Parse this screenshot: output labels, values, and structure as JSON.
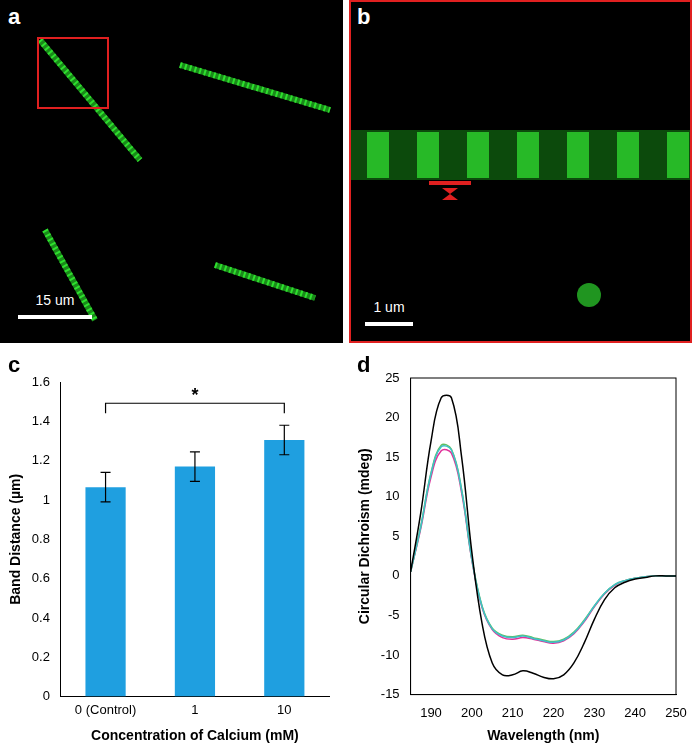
{
  "images": [
    {
      "panel_label": "a",
      "scale_bar": "15 um"
    },
    {
      "panel_label": "b",
      "scale_bar": "1 um"
    }
  ],
  "chart_data": [
    {
      "panel_label": "c",
      "type": "bar",
      "x_label": "Concentration of Calcium (mM)",
      "y_label": "Band Distance (µm)",
      "categories": [
        "0 (Control)",
        "1",
        "10"
      ],
      "values": [
        1.065,
        1.17,
        1.305
      ],
      "errors": [
        0.075,
        0.075,
        0.075
      ],
      "color": "#1f9fe0",
      "ylim": [
        0,
        1.6
      ],
      "yticks": [
        0,
        0.2,
        0.4,
        0.6,
        0.8,
        1,
        1.2,
        1.4,
        1.6
      ],
      "grid": false,
      "annotations": [
        {
          "text": "*",
          "from": "0 (Control)",
          "to": "10"
        }
      ]
    },
    {
      "panel_label": "d",
      "type": "line",
      "x_label": "Wavelength (nm)",
      "y_label": "Circular Dichroism (mdeg)",
      "x": [
        185,
        187.5,
        190,
        192.5,
        195,
        197.5,
        200,
        202.5,
        205,
        207.5,
        210,
        212.5,
        215,
        217.5,
        220,
        222.5,
        225,
        227.5,
        230,
        232.5,
        235,
        237.5,
        240,
        242.5,
        245,
        247.5,
        250
      ],
      "series": [
        {
          "color": "#000000",
          "values": [
            0.5,
            8,
            17,
            22.5,
            22.5,
            15,
            3,
            -6,
            -11,
            -12.5,
            -12.5,
            -12,
            -12.3,
            -12.8,
            -13,
            -12.5,
            -11,
            -8.5,
            -5.5,
            -3,
            -1.5,
            -0.8,
            -0.4,
            -0.2,
            0,
            0,
            0
          ]
        },
        {
          "color": "#40c0c8",
          "values": [
            0.5,
            6.2,
            12.9,
            16.3,
            15.9,
            10.8,
            2.1,
            -3.9,
            -6.7,
            -7.6,
            -7.8,
            -7.6,
            -7.9,
            -8.2,
            -8.4,
            -8.1,
            -7.2,
            -5.7,
            -3.8,
            -2.2,
            -1.1,
            -0.6,
            -0.3,
            -0.1,
            0,
            0,
            0
          ]
        },
        {
          "color": "#60c060",
          "values": [
            0.5,
            6.3,
            13,
            16.5,
            16,
            10.9,
            2.2,
            -3.8,
            -6.6,
            -7.5,
            -7.7,
            -7.5,
            -7.8,
            -8.1,
            -8.3,
            -8,
            -7.1,
            -5.6,
            -3.8,
            -2.2,
            -1.1,
            -0.6,
            -0.3,
            -0.1,
            0,
            0,
            0
          ]
        },
        {
          "color": "#e0309a",
          "values": [
            0.5,
            6,
            12.5,
            15.8,
            15.5,
            10.5,
            2,
            -4,
            -6.8,
            -7.8,
            -8,
            -7.8,
            -8,
            -8.3,
            -8.5,
            -8.2,
            -7.3,
            -5.8,
            -3.9,
            -2.3,
            -1.2,
            -0.6,
            -0.3,
            -0.1,
            0,
            0,
            0
          ]
        }
      ],
      "xlim": [
        185,
        250
      ],
      "xticks": [
        190,
        200,
        210,
        220,
        230,
        240,
        250
      ],
      "ylim": [
        -15,
        25
      ],
      "yticks": [
        -15,
        -10,
        -5,
        0,
        5,
        10,
        15,
        20,
        25
      ],
      "grid": false
    }
  ]
}
